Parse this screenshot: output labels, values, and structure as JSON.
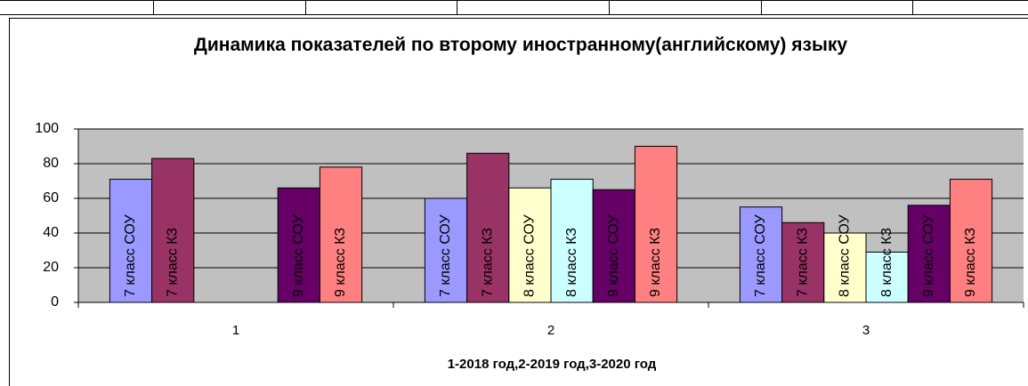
{
  "chart_data": {
    "type": "bar",
    "title": "Динамика показателей по второму иностранному(английскому) языку",
    "x_label": "1-2018 год,2-2019 год,3-2020 год",
    "categories": [
      "1",
      "2",
      "3"
    ],
    "series": [
      {
        "name": "7 класс СОУ",
        "color": "#9999ff",
        "values": [
          71,
          60,
          55
        ]
      },
      {
        "name": "7 класс КЗ",
        "color": "#993366",
        "values": [
          83,
          86,
          46
        ]
      },
      {
        "name": "8 класс СОУ",
        "color": "#ffffcc",
        "values": [
          null,
          66,
          40
        ]
      },
      {
        "name": "8 класс КЗ",
        "color": "#ccffff",
        "values": [
          null,
          71,
          29
        ]
      },
      {
        "name": "9 класс СОУ",
        "color": "#660066",
        "values": [
          66,
          65,
          56
        ]
      },
      {
        "name": "9 класс КЗ",
        "color": "#ff8080",
        "values": [
          78,
          90,
          71
        ]
      }
    ],
    "ylim": [
      0,
      100
    ],
    "yticks": [
      0,
      20,
      40,
      60,
      80,
      100
    ],
    "grid": true
  }
}
